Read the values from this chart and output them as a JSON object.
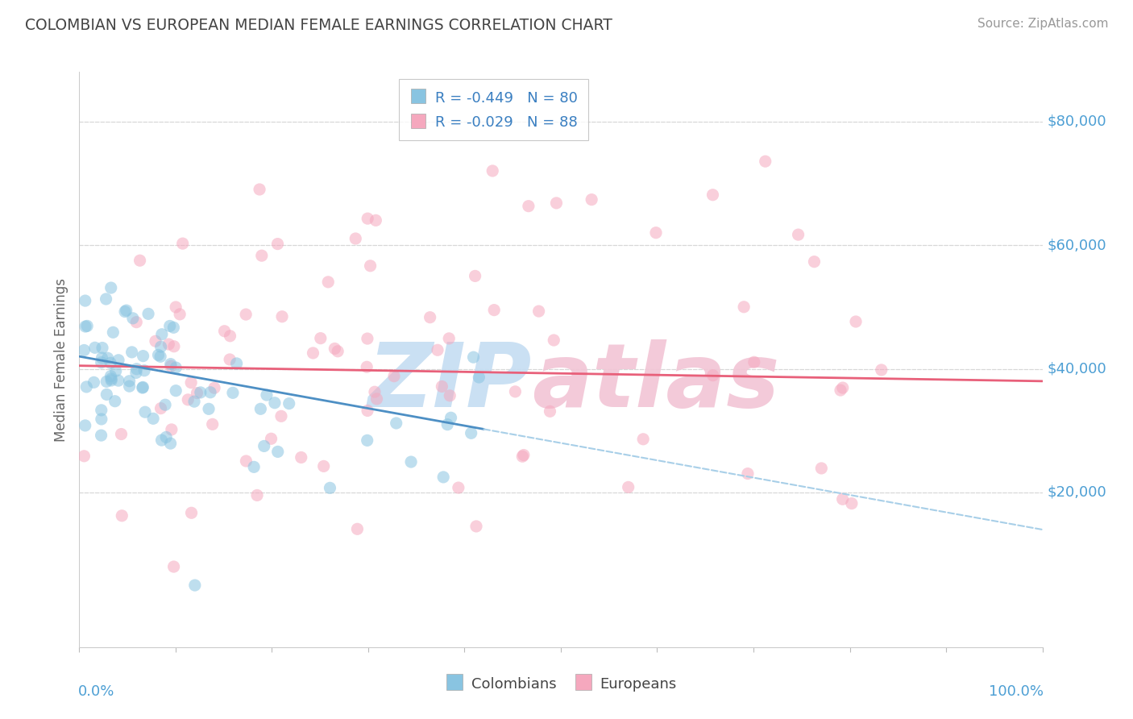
{
  "title": "COLOMBIAN VS EUROPEAN MEDIAN FEMALE EARNINGS CORRELATION CHART",
  "source": "Source: ZipAtlas.com",
  "ylabel": "Median Female Earnings",
  "xlim": [
    0,
    1
  ],
  "ylim": [
    -5000,
    88000
  ],
  "ytick_vals": [
    20000,
    40000,
    60000,
    80000
  ],
  "ytick_labels": [
    "$20,000",
    "$40,000",
    "$60,000",
    "$80,000"
  ],
  "xtick_left": "0.0%",
  "xtick_right": "100.0%",
  "legend_blue_label": "R = -0.449   N = 80",
  "legend_pink_label": "R = -0.029   N = 88",
  "col_color": "#89c4e1",
  "eur_color": "#f5a8be",
  "reg_blue_color": "#4d8fc4",
  "reg_pink_color": "#e8607a",
  "dash_color": "#a8cfe8",
  "grid_color": "#d8d8d8",
  "title_color": "#444444",
  "source_color": "#999999",
  "axis_label_color": "#4d9fd4",
  "ylabel_color": "#666666",
  "background": "#ffffff",
  "scatter_alpha": 0.55,
  "scatter_size": 120,
  "legend_text_color": "#3a7fc1",
  "watermark_zip_color": "#c5ddf2",
  "watermark_atlas_color": "#f2c5d5"
}
